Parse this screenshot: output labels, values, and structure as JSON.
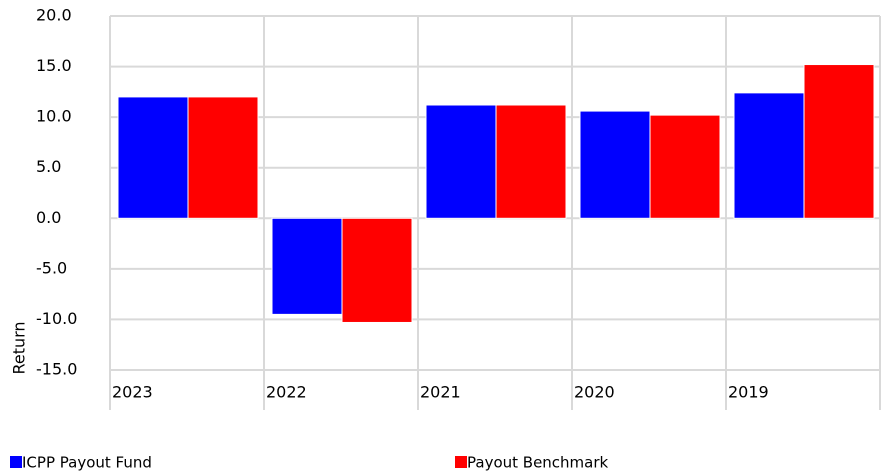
{
  "chart_data": {
    "type": "bar",
    "y_label": "Return",
    "categories": [
      "2023",
      "2022",
      "2021",
      "2020",
      "2019"
    ],
    "series": [
      {
        "name": "ICPP Payout Fund",
        "color": "#0000ff",
        "values": [
          12.0,
          -9.5,
          11.2,
          10.6,
          12.4
        ]
      },
      {
        "name": "Payout Benchmark",
        "color": "#ff0000",
        "values": [
          12.0,
          -10.3,
          11.2,
          10.2,
          15.2
        ]
      }
    ],
    "ylim": [
      -15,
      20
    ],
    "yticks": [
      {
        "value": -15,
        "label": "-15.0"
      },
      {
        "value": -10,
        "label": "-10.0"
      },
      {
        "value": -5,
        "label": "-5.0"
      },
      {
        "value": 0,
        "label": "0.0"
      },
      {
        "value": 5,
        "label": "5.0"
      },
      {
        "value": 10,
        "label": "10.0"
      },
      {
        "value": 15,
        "label": "15.0"
      },
      {
        "value": 20,
        "label": "20.0"
      }
    ],
    "grid": true
  }
}
